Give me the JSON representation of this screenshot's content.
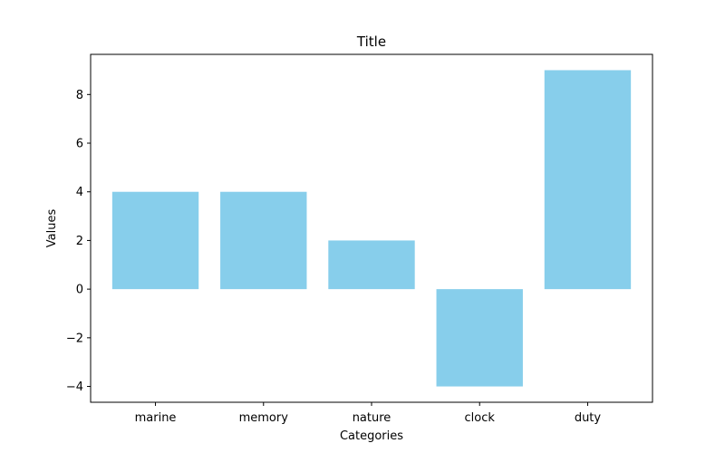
{
  "chart_data": {
    "type": "bar",
    "title": "Title",
    "xlabel": "Categories",
    "ylabel": "Values",
    "categories": [
      "marine",
      "memory",
      "nature",
      "clock",
      "duty"
    ],
    "values": [
      4,
      4,
      2,
      -4,
      9
    ],
    "ylim": [
      -4.65,
      9.65
    ],
    "yticks": [
      -4,
      -2,
      0,
      2,
      4,
      6,
      8
    ],
    "ytick_labels": [
      "−4",
      "−2",
      "0",
      "2",
      "4",
      "6",
      "8"
    ],
    "grid": false,
    "legend": "none",
    "bar_color": "#87ceeb"
  }
}
